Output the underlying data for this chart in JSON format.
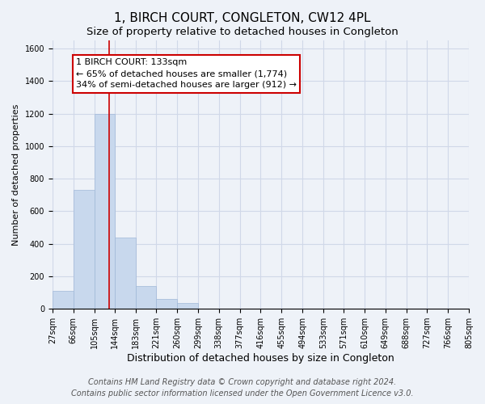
{
  "title": "1, BIRCH COURT, CONGLETON, CW12 4PL",
  "subtitle": "Size of property relative to detached houses in Congleton",
  "xlabel": "Distribution of detached houses by size in Congleton",
  "ylabel": "Number of detached properties",
  "bar_heights": [
    110,
    730,
    1200,
    440,
    140,
    60,
    35,
    0,
    0,
    0,
    0,
    0,
    0,
    0,
    0,
    0,
    0,
    0,
    0,
    0
  ],
  "bin_edges": [
    27,
    66,
    105,
    144,
    183,
    221,
    260,
    299,
    338,
    377,
    416,
    455,
    494,
    533,
    571,
    610,
    649,
    688,
    727,
    766,
    805
  ],
  "bar_color": "#c8d8ed",
  "bar_edge_color": "#a0b8d8",
  "grid_color": "#d0d8e8",
  "ylim": [
    0,
    1650
  ],
  "yticks": [
    0,
    200,
    400,
    600,
    800,
    1000,
    1200,
    1400,
    1600
  ],
  "property_size": 133,
  "red_line_color": "#cc0000",
  "annot_line1": "1 BIRCH COURT: 133sqm",
  "annot_line2": "← 65% of detached houses are smaller (1,774)",
  "annot_line3": "34% of semi-detached houses are larger (912) →",
  "annotation_box_color": "#ffffff",
  "annotation_box_edge_color": "#cc0000",
  "footer_line1": "Contains HM Land Registry data © Crown copyright and database right 2024.",
  "footer_line2": "Contains public sector information licensed under the Open Government Licence v3.0.",
  "background_color": "#eef2f8",
  "plot_background_color": "#eef2f8",
  "title_fontsize": 11,
  "subtitle_fontsize": 9.5,
  "xlabel_fontsize": 9,
  "ylabel_fontsize": 8,
  "tick_fontsize": 7,
  "annot_fontsize": 8,
  "footer_fontsize": 7
}
